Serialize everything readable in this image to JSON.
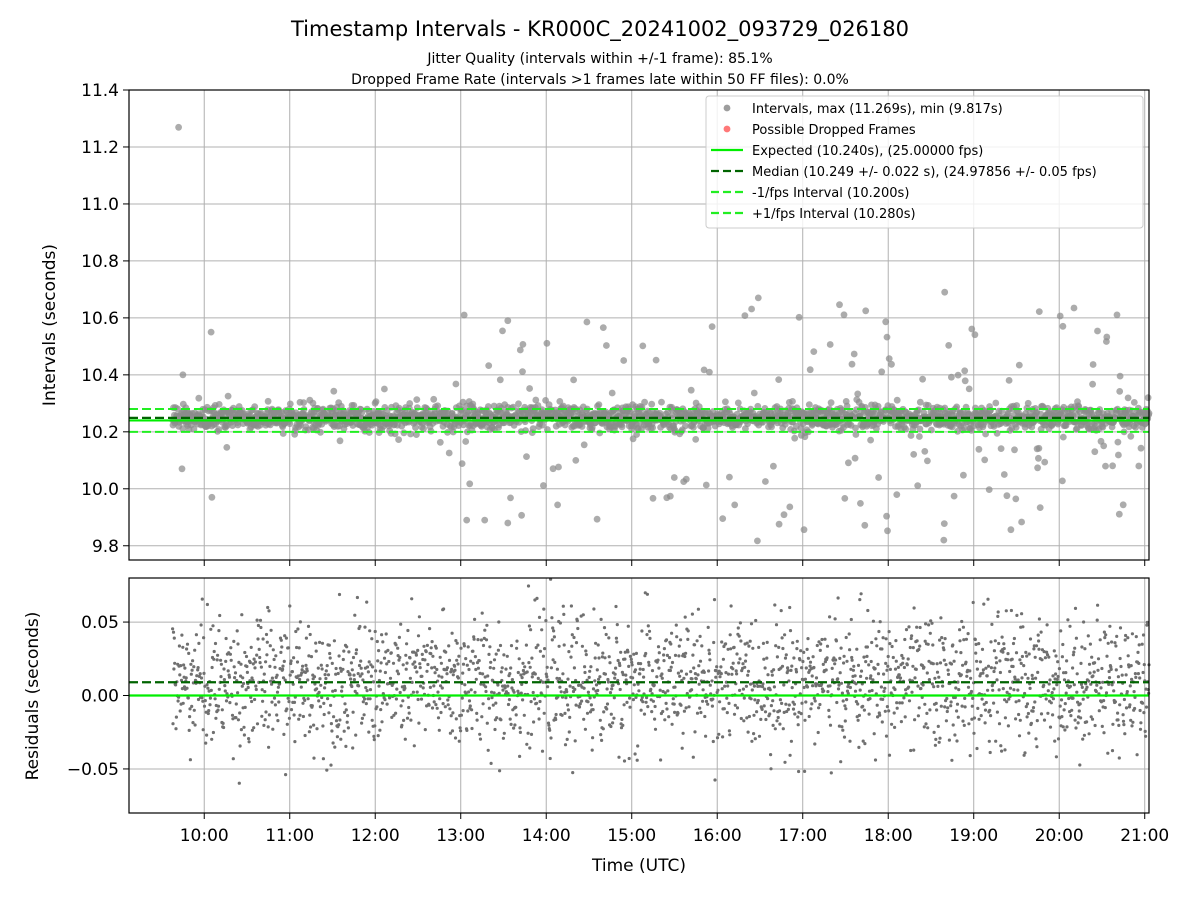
{
  "figure": {
    "title": "Timestamp Intervals - KR000C_20241002_093729_026180",
    "subtitle_line1": "Jitter Quality (intervals within +/-1 frame): 85.1%",
    "subtitle_line2": "Dropped Frame Rate (intervals >1 frames late within 50 FF files): 0.0%"
  },
  "colors": {
    "intervals": "#8c8c8c",
    "dropped": "#ff6060",
    "expected": "#00ee00",
    "median": "#006400",
    "fps_interval": "#22ee22",
    "residual_points": "#707070",
    "grid": "#b0b0b0"
  },
  "chart_data": [
    {
      "type": "scatter",
      "name": "intervals-panel",
      "xlabel": "",
      "ylabel": "Intervals (seconds)",
      "xlim": [
        9.12,
        21.05
      ],
      "ylim": [
        9.75,
        11.4
      ],
      "yticks": [
        9.8,
        10.0,
        10.2,
        10.4,
        10.6,
        10.8,
        11.0,
        11.2,
        11.4
      ],
      "ytick_labels": [
        "9.8",
        "10.0",
        "10.2",
        "10.4",
        "10.6",
        "10.8",
        "11.0",
        "11.2",
        "11.4"
      ],
      "xticks": [
        10,
        11,
        12,
        13,
        14,
        15,
        16,
        17,
        18,
        19,
        20,
        21
      ],
      "grid": true,
      "legend_position": "top-right",
      "legend": [
        {
          "label": "Intervals, max (11.269s), min (9.817s)",
          "kind": "dot",
          "color": "#8c8c8c"
        },
        {
          "label": "Possible Dropped Frames",
          "kind": "dot",
          "color": "#ff6060"
        },
        {
          "label": "Expected (10.240s), (25.00000 fps)",
          "kind": "solid",
          "color": "#00ee00"
        },
        {
          "label": "Median (10.249 +/- 0.022 s), (24.97856 +/- 0.05 fps)",
          "kind": "dashed",
          "color": "#006400"
        },
        {
          "label": "-1/fps Interval (10.200s)",
          "kind": "dashed",
          "color": "#22ee22"
        },
        {
          "label": "+1/fps Interval (10.280s)",
          "kind": "dashed",
          "color": "#22ee22"
        }
      ],
      "lines": {
        "expected": 10.24,
        "median": 10.249,
        "minus_fps": 10.2,
        "plus_fps": 10.28
      },
      "x_start": 9.63,
      "x_end": 21.05,
      "max_interval": 11.269,
      "min_interval": 9.817,
      "median_interval": 10.249,
      "median_spread": 0.022,
      "highlight_points": [
        {
          "x": 9.7,
          "y": 11.269
        },
        {
          "x": 9.75,
          "y": 10.4
        },
        {
          "x": 9.74,
          "y": 10.07
        },
        {
          "x": 10.08,
          "y": 10.55
        },
        {
          "x": 10.09,
          "y": 9.97
        },
        {
          "x": 13.04,
          "y": 10.61
        },
        {
          "x": 13.55,
          "y": 10.59
        },
        {
          "x": 13.07,
          "y": 9.89
        },
        {
          "x": 13.55,
          "y": 9.88
        },
        {
          "x": 16.48,
          "y": 10.67
        },
        {
          "x": 18.66,
          "y": 10.69
        },
        {
          "x": 16.47,
          "y": 9.817
        },
        {
          "x": 18.65,
          "y": 9.82
        }
      ]
    },
    {
      "type": "scatter",
      "name": "residuals-panel",
      "xlabel": "Time (UTC)",
      "ylabel": "Residuals (seconds)",
      "xlim": [
        9.12,
        21.05
      ],
      "ylim": [
        -0.08,
        0.08
      ],
      "yticks": [
        -0.05,
        0.0,
        0.05
      ],
      "ytick_labels": [
        "−0.05",
        "0.00",
        "0.05"
      ],
      "xticks": [
        10,
        11,
        12,
        13,
        14,
        15,
        16,
        17,
        18,
        19,
        20,
        21
      ],
      "xtick_labels": [
        "10:00",
        "11:00",
        "12:00",
        "13:00",
        "14:00",
        "15:00",
        "16:00",
        "17:00",
        "18:00",
        "19:00",
        "20:00",
        "21:00"
      ],
      "grid": true,
      "lines": {
        "zero": 0.0,
        "median_offset": 0.009
      }
    }
  ]
}
